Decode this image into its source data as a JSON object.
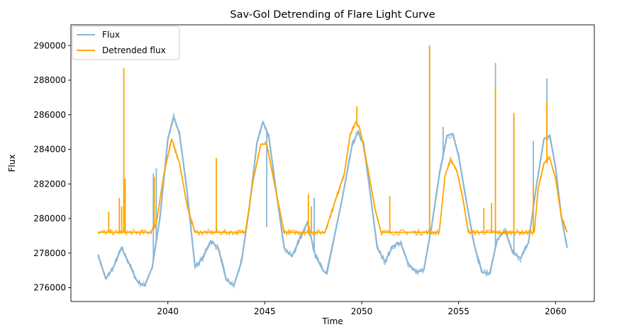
{
  "chart_data": {
    "type": "line",
    "title": "Sav-Gol Detrending of Flare Light Curve",
    "xlabel": "Time",
    "ylabel": "Flux",
    "xlim": [
      2035.0,
      2062.0
    ],
    "ylim": [
      275200,
      291200
    ],
    "xticks": [
      2040,
      2045,
      2050,
      2055,
      2060
    ],
    "yticks": [
      276000,
      278000,
      280000,
      282000,
      284000,
      286000,
      288000,
      290000
    ],
    "grid": false,
    "legend_position": "top-left",
    "series": [
      {
        "name": "Flux",
        "color": "#8ab6d6",
        "x": [
          2036.4,
          2036.8,
          2037.2,
          2037.6,
          2038.0,
          2038.4,
          2038.8,
          2039.2,
          2039.6,
          2040.0,
          2040.3,
          2040.6,
          2041.0,
          2041.4,
          2041.8,
          2042.2,
          2042.6,
          2043.0,
          2043.4,
          2043.8,
          2044.2,
          2044.6,
          2044.9,
          2045.2,
          2045.6,
          2046.0,
          2046.4,
          2046.8,
          2047.2,
          2047.6,
          2048.0,
          2048.2,
          2049.0,
          2049.5,
          2049.8,
          2050.1,
          2050.4,
          2050.8,
          2051.2,
          2051.6,
          2052.0,
          2052.4,
          2052.8,
          2053.2,
          2053.6,
          2054.0,
          2054.4,
          2054.7,
          2055.0,
          2055.4,
          2055.8,
          2056.2,
          2056.6,
          2057.0,
          2057.4,
          2057.8,
          2058.2,
          2058.6,
          2059.0,
          2059.4,
          2059.7,
          2060.0,
          2060.3,
          2060.6
        ],
        "values": [
          277900,
          276500,
          277200,
          278300,
          277400,
          276400,
          276100,
          277200,
          280100,
          284600,
          285900,
          284900,
          281500,
          277200,
          277700,
          278700,
          278300,
          276500,
          276100,
          277500,
          280600,
          284400,
          285600,
          284800,
          281500,
          278300,
          277800,
          278800,
          279800,
          277900,
          277000,
          276800,
          281200,
          284200,
          285000,
          284300,
          281800,
          278300,
          277500,
          278400,
          278600,
          277400,
          276900,
          277000,
          279500,
          282500,
          284800,
          284900,
          283600,
          281000,
          278500,
          276900,
          276800,
          278800,
          279300,
          278000,
          277700,
          278600,
          281800,
          284600,
          284800,
          283000,
          280100,
          278300
        ],
        "flares": [
          [
            2039.25,
            282600
          ],
          [
            2039.4,
            282900
          ],
          [
            2045.1,
            279500
          ],
          [
            2047.55,
            281200
          ],
          [
            2053.5,
            290000
          ],
          [
            2054.2,
            285300
          ],
          [
            2056.9,
            289000
          ],
          [
            2057.85,
            286000
          ],
          [
            2058.85,
            284500
          ],
          [
            2059.55,
            288100
          ]
        ]
      },
      {
        "name": "Detrended flux",
        "color": "#ffa500",
        "x": [
          2036.4,
          2039.1,
          2039.4,
          2039.8,
          2040.2,
          2040.6,
          2041.0,
          2041.4,
          2044.0,
          2044.4,
          2044.8,
          2045.1,
          2045.5,
          2046.0,
          2048.1,
          2049.1,
          2049.4,
          2049.7,
          2049.9,
          2050.3,
          2050.7,
          2051.0,
          2054.0,
          2054.3,
          2054.6,
          2054.9,
          2055.2,
          2055.5,
          2055.7,
          2056.4,
          2056.8,
          2057.0,
          2058.9,
          2059.1,
          2059.4,
          2059.7,
          2060.0,
          2060.3,
          2060.6
        ],
        "values": [
          279200,
          279200,
          279700,
          282600,
          284600,
          283200,
          280700,
          279200,
          279200,
          282200,
          284300,
          284300,
          282000,
          279200,
          279200,
          282600,
          284800,
          285600,
          285200,
          283000,
          280500,
          279200,
          279200,
          282500,
          283400,
          282800,
          281300,
          279200,
          279200,
          279200,
          279200,
          279200,
          279200,
          281700,
          283200,
          283500,
          282300,
          280100,
          279200
        ],
        "flares": [
          [
            2036.95,
            280400
          ],
          [
            2037.5,
            281200
          ],
          [
            2037.62,
            280700
          ],
          [
            2037.73,
            288700
          ],
          [
            2037.8,
            282300
          ],
          [
            2039.3,
            282400
          ],
          [
            2042.5,
            283500
          ],
          [
            2047.25,
            281400
          ],
          [
            2047.4,
            280700
          ],
          [
            2049.75,
            286500
          ],
          [
            2050.75,
            280400
          ],
          [
            2051.45,
            281300
          ],
          [
            2053.5,
            290000
          ],
          [
            2056.3,
            280600
          ],
          [
            2056.7,
            280900
          ],
          [
            2056.9,
            287700
          ],
          [
            2057.85,
            286100
          ],
          [
            2058.85,
            282000
          ],
          [
            2059.55,
            286800
          ]
        ]
      }
    ]
  }
}
